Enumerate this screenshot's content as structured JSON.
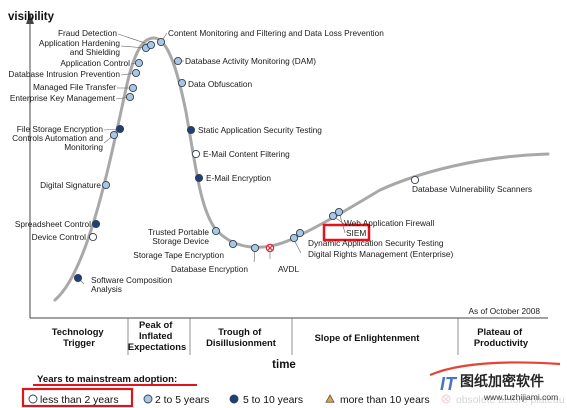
{
  "chart_data": {
    "type": "hype-cycle",
    "y_axis_label": "visibility",
    "x_axis_label": "time",
    "note": "As of October 2008",
    "phases": [
      [
        "Technology",
        "Trigger"
      ],
      [
        "Peak of",
        "Inflated",
        "Expectations"
      ],
      [
        "Trough of",
        "Disillusionment"
      ],
      [
        "Slope of Enlightenment"
      ],
      [
        "Plateau of",
        "Productivity"
      ]
    ],
    "legend": {
      "title": "Years to mainstream adoption:",
      "items": [
        {
          "key": "lt2",
          "label": "less than 2 years",
          "marker": "circle",
          "color": "#ffffff"
        },
        {
          "key": "2to5",
          "label": "2 to 5 years",
          "marker": "circle",
          "color": "#a9c6e4"
        },
        {
          "key": "5to10",
          "label": "5 to 10 years",
          "marker": "circle",
          "color": "#1f3f7a"
        },
        {
          "key": "gt10",
          "label": "more than 10 years",
          "marker": "triangle",
          "color": "#e8a33c"
        },
        {
          "key": "obsolete",
          "label": "obsolete before plateau",
          "marker": "circle-x",
          "color": "#d8283c"
        }
      ]
    },
    "highlight_color": "#e0141a",
    "technologies": [
      {
        "name": "Software Composition Analysis",
        "adoption": "5to10"
      },
      {
        "name": "Device Control",
        "adoption": "lt2"
      },
      {
        "name": "Spreadsheet Control",
        "adoption": "5to10"
      },
      {
        "name": "Digital Signature",
        "adoption": "2to5"
      },
      {
        "name": "Controls Automation and Monitoring",
        "adoption": "2to5"
      },
      {
        "name": "File Storage Encryption",
        "adoption": "5to10"
      },
      {
        "name": "Enterprise Key Management",
        "adoption": "2to5"
      },
      {
        "name": "Managed File Transfer",
        "adoption": "2to5"
      },
      {
        "name": "Database Intrusion Prevention",
        "adoption": "2to5"
      },
      {
        "name": "Application Control",
        "adoption": "2to5"
      },
      {
        "name": "Application Hardening and Shielding",
        "adoption": "2to5"
      },
      {
        "name": "Fraud Detection",
        "adoption": "2to5"
      },
      {
        "name": "Content Monitoring and Filtering and Data Loss Prevention",
        "adoption": "2to5"
      },
      {
        "name": "Database Activity Monitoring (DAM)",
        "adoption": "2to5"
      },
      {
        "name": "Data Obfuscation",
        "adoption": "2to5"
      },
      {
        "name": "Static Application Security Testing",
        "adoption": "5to10"
      },
      {
        "name": "E-Mail Content Filtering",
        "adoption": "lt2"
      },
      {
        "name": "E-Mail Encryption",
        "adoption": "5to10"
      },
      {
        "name": "Trusted Portable Storage Device",
        "adoption": "2to5"
      },
      {
        "name": "Storage Tape Encryption",
        "adoption": "2to5"
      },
      {
        "name": "Database Encryption",
        "adoption": "2to5"
      },
      {
        "name": "AVDL",
        "adoption": "obsolete"
      },
      {
        "name": "Dynamic Application Security Testing",
        "adoption": "2to5"
      },
      {
        "name": "Digital Rights Management (Enterprise)",
        "adoption": "2to5"
      },
      {
        "name": "SIEM",
        "adoption": "2to5",
        "highlighted": true
      },
      {
        "name": "Web Application Firewall",
        "adoption": "2to5"
      },
      {
        "name": "Database Vulnerability Scanners",
        "adoption": "lt2"
      }
    ]
  },
  "watermark": {
    "brand": "IT",
    "cn_text": "图纸加密软件",
    "url": "www.tuzhijiami.com"
  }
}
